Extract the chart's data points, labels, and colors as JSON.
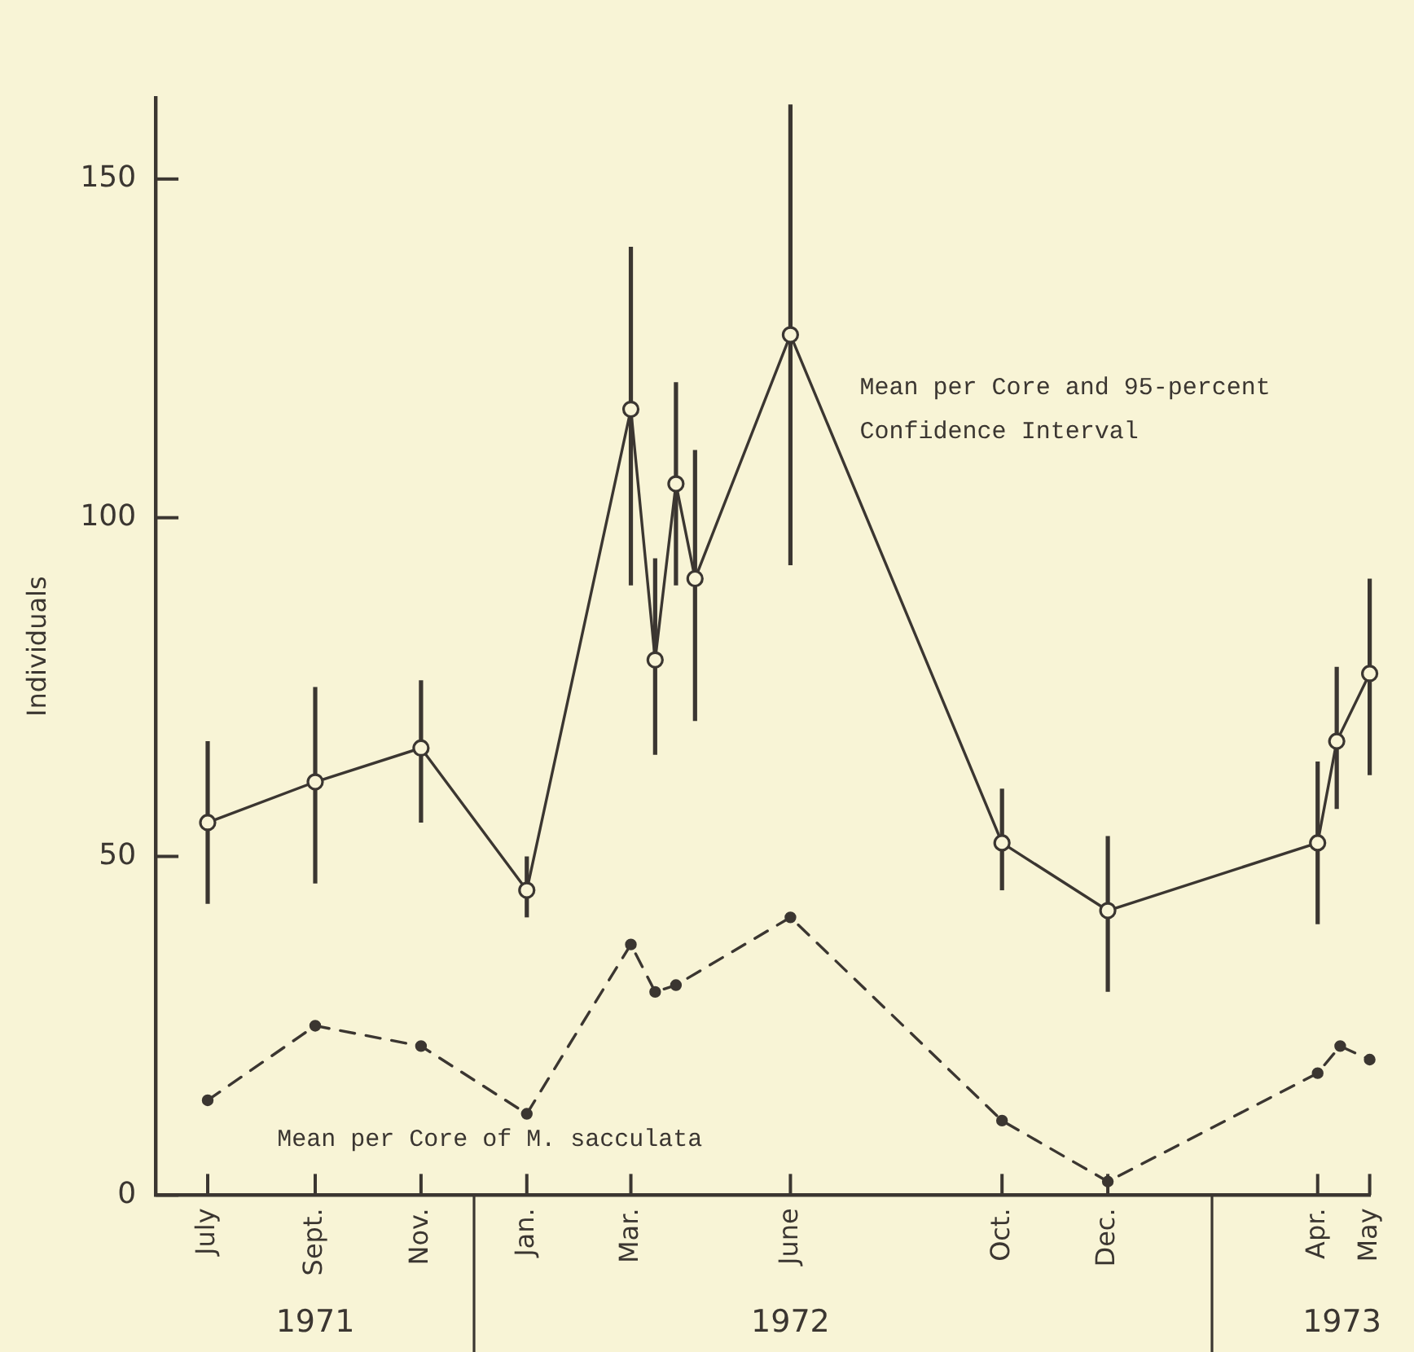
{
  "chart_data": {
    "type": "line",
    "ylabel": "Individuals",
    "xlim": [
      "1971-06",
      "1973-05"
    ],
    "xticks": [
      {
        "value": "1971-07",
        "label": "July"
      },
      {
        "value": "1971-09",
        "label": "Sept."
      },
      {
        "value": "1971-11",
        "label": "Nov."
      },
      {
        "value": "1972-01",
        "label": "Jan."
      },
      {
        "value": "1972-03",
        "label": "Mar."
      },
      {
        "value": "1972-06",
        "label": "June"
      },
      {
        "value": "1972-10",
        "label": "Oct."
      },
      {
        "value": "1972-12",
        "label": "Dec."
      },
      {
        "value": "1973-04",
        "label": "Apr."
      },
      {
        "value": "1973-05",
        "label": "May"
      }
    ],
    "x2lim": [
      "1971-06",
      "1973-05"
    ],
    "x2ticks": [
      {
        "value": "1971-09",
        "label": "1971"
      },
      {
        "value": "1972-06",
        "label": "1972"
      },
      {
        "value": "1973-04-15",
        "label": "1973"
      }
    ],
    "ylim": [
      0,
      162
    ],
    "yticks": [
      0,
      50,
      100,
      150
    ],
    "series": [
      {
        "color": "#3b3631",
        "marker": "circle",
        "line_style": "solid",
        "x": [
          "1971-07",
          "1971-09",
          "1971-11",
          "1972-01",
          "1972-03-01",
          "1972-03-15",
          "1972-03-27",
          "1972-04-07",
          "1972-06",
          "1972-10",
          "1972-12",
          "1973-04-01",
          "1973-04-12",
          "1973-05"
        ],
        "values": [
          55,
          61,
          66,
          45,
          116,
          79,
          105,
          91,
          127,
          52,
          42,
          52,
          67,
          77
        ],
        "errors": [
          [
            43,
            67
          ],
          [
            46,
            75
          ],
          [
            55,
            76
          ],
          [
            41,
            50
          ],
          [
            90,
            140
          ],
          [
            65,
            94
          ],
          [
            90,
            120
          ],
          [
            70,
            110
          ],
          [
            93,
            161
          ],
          [
            45,
            60
          ],
          [
            30,
            53
          ],
          [
            40,
            64
          ],
          [
            57,
            78
          ],
          [
            62,
            91
          ]
        ]
      },
      {
        "color": "#3b3631",
        "marker": "circle",
        "line_style": "dashed",
        "x": [
          "1971-07",
          "1971-09",
          "1971-11",
          "1972-01",
          "1972-03-01",
          "1972-03-15",
          "1972-03-27",
          "1972-06",
          "1972-10",
          "1972-12",
          "1973-04-01",
          "1973-04-14",
          "1973-05"
        ],
        "values": [
          14,
          25,
          22,
          12,
          37,
          30,
          31,
          41,
          11,
          2,
          18,
          22,
          20
        ]
      }
    ],
    "annotations": [
      "Mean per Core and 95-percent Confidence Interval",
      "Mean per Core of M. sacculata"
    ]
  }
}
